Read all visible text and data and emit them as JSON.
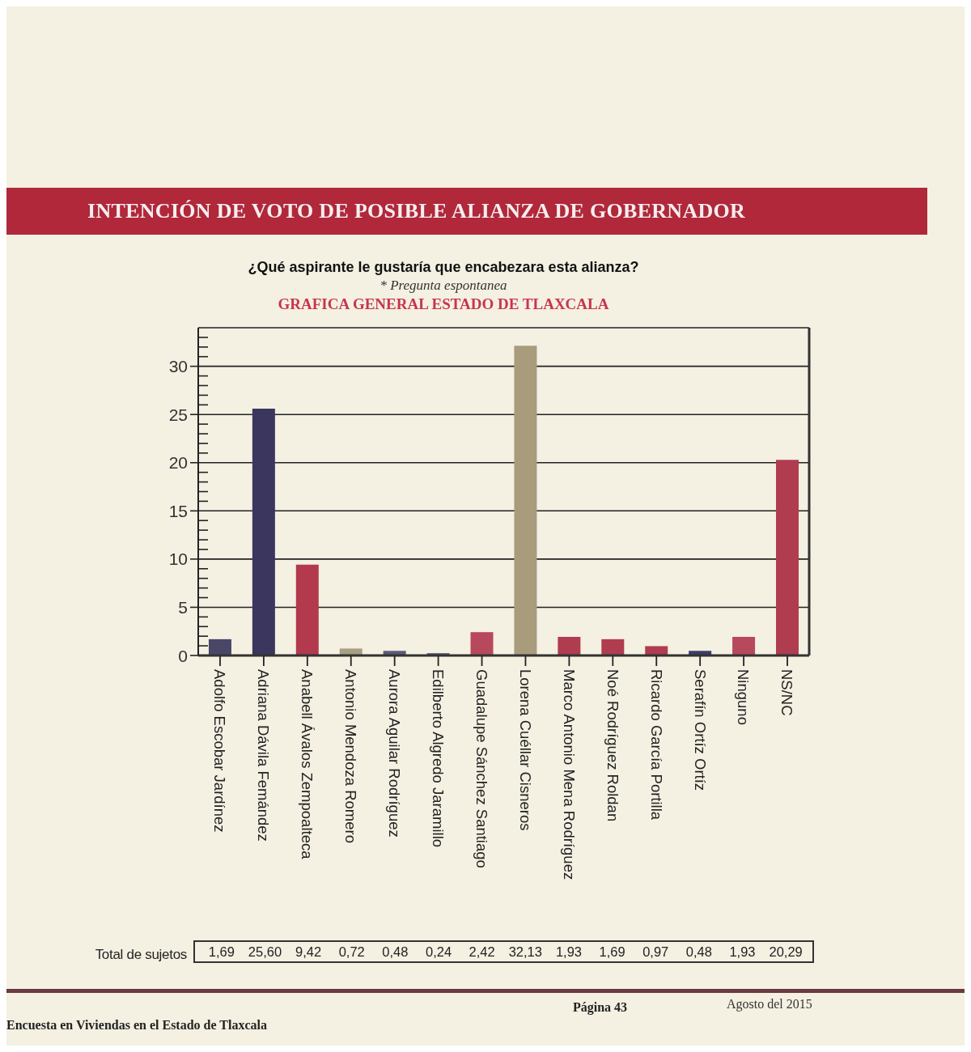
{
  "chart_data": {
    "type": "bar",
    "title": "INTENCIÓN DE VOTO DE POSIBLE ALIANZA DE GOBERNADOR",
    "subtitle": "¿Qué aspirante le gustaría que encabezara esta alianza?",
    "annotations": [
      "* Pregunta espontanea",
      "GRAFICA GENERAL ESTADO DE TLAXCALA",
      "Total de sujetos",
      "Encuesta en Viviendas en el Estado de Tlaxcala",
      "Página 43",
      "Agosto del 2015"
    ],
    "categories": [
      "Adolfo Escobar Jardínez",
      "Adriana Dávila Femández",
      "Anabell Ávalos Zempoalteca",
      "Antonio Mendoza Romero",
      "Aurora Aguilar Rodríguez",
      "Edilberto Algredo Jaramillo",
      "Guadalupe Sánchez Santiago",
      "Lorena Cuéllar Cisneros",
      "Marco Antonio Mena Rodríguez",
      "Noé Rodríguez Roldan",
      "Ricardo García Portilla",
      "Serafín Ortíz Ortíz",
      "Ninguno",
      "NS/NC"
    ],
    "values": [
      1.69,
      25.6,
      9.42,
      0.72,
      0.48,
      0.24,
      2.42,
      32.13,
      1.93,
      1.69,
      0.97,
      0.48,
      1.93,
      20.29
    ],
    "value_labels": [
      "1,69",
      "25,60",
      "9,42",
      "0,72",
      "0,48",
      "0,24",
      "2,42",
      "32,13",
      "1,93",
      "1,69",
      "0,97",
      "0,48",
      "1,93",
      "20,29"
    ],
    "colors": [
      "#4a4668",
      "#3b365e",
      "#b3394d",
      "#a89e82",
      "#5c5a78",
      "#5c5a78",
      "#b8485c",
      "#a89c7c",
      "#b03c50",
      "#b03c50",
      "#b03c50",
      "#3e3c6c",
      "#b8485c",
      "#b03c50"
    ],
    "ylim": [
      0,
      34
    ],
    "yticks": [
      0,
      {
        "value": 1,
        "label": null
      },
      {
        "value": 2,
        "label": null
      },
      {
        "value": 3,
        "label": null
      },
      {
        "value": 4,
        "label": null
      },
      5,
      {
        "value": 6,
        "label": null
      },
      {
        "value": 7,
        "label": null
      },
      {
        "value": 8,
        "label": null
      },
      {
        "value": 9,
        "label": null
      },
      10,
      {
        "value": 11,
        "label": null
      },
      {
        "value": 12,
        "label": null
      },
      {
        "value": 13,
        "label": null
      },
      {
        "value": 14,
        "label": null
      },
      15,
      {
        "value": 16,
        "label": null
      },
      {
        "value": 17,
        "label": null
      },
      {
        "value": 18,
        "label": null
      },
      {
        "value": 19,
        "label": null
      },
      20,
      {
        "value": 21,
        "label": null
      },
      {
        "value": 22,
        "label": null
      },
      {
        "value": 23,
        "label": null
      },
      {
        "value": 24,
        "label": null
      },
      25,
      {
        "value": 26,
        "label": null
      },
      {
        "value": 27,
        "label": null
      },
      {
        "value": 28,
        "label": null
      },
      {
        "value": 29,
        "label": null
      },
      30,
      {
        "value": 31,
        "label": null
      },
      {
        "value": 32,
        "label": null
      },
      {
        "value": 33,
        "label": null
      }
    ],
    "grid": "y"
  }
}
